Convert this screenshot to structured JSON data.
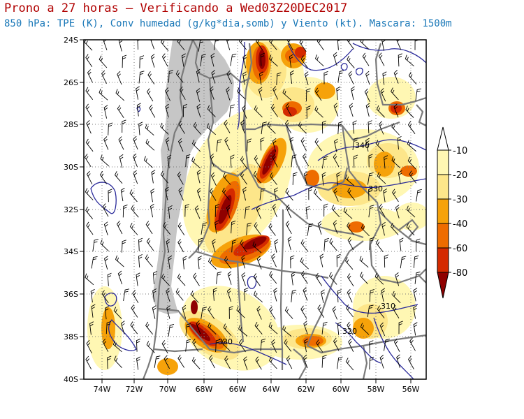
{
  "title_line1": "Prono a 27 horas — Verificando a Wed03Z20DEC2017",
  "title_line2": "850 hPa: TPE (K), Conv humedad (g/kg*dia,somb) y Viento (kt). Mascara: 1500m",
  "lat_labels": [
    "24S",
    "26S",
    "28S",
    "30S",
    "32S",
    "34S",
    "36S",
    "38S",
    "40S"
  ],
  "lon_labels": [
    "74W",
    "72W",
    "70W",
    "68W",
    "66W",
    "64W",
    "62W",
    "60W",
    "58W",
    "56W"
  ],
  "legend": {
    "labels": [
      "-10",
      "-20",
      "-30",
      "-40",
      "-60",
      "-80"
    ],
    "colors": [
      "#fff7b3",
      "#fde68a",
      "#f6a20a",
      "#ee6c00",
      "#d42a00",
      "#8f0000"
    ]
  },
  "contour_labels": [
    "340",
    "330",
    "310",
    "320",
    "330"
  ],
  "colors": {
    "mask": "#c6c6c6",
    "tpe_contour": "#2a2a9a",
    "border": "#7a7a7a",
    "wind_barb": "#000000",
    "title1": "#b00000",
    "title2": "#1a78b8"
  }
}
